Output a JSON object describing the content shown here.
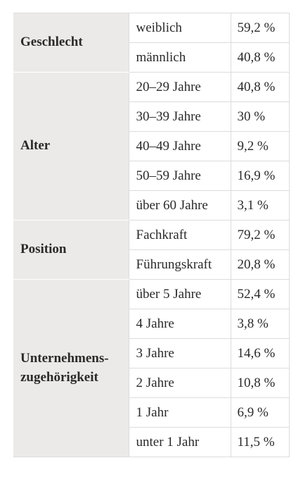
{
  "table": {
    "groups": [
      {
        "label": "Geschlecht",
        "rows": [
          {
            "sub": "weiblich",
            "value": "59,2 %"
          },
          {
            "sub": "männlich",
            "value": "40,8 %"
          }
        ]
      },
      {
        "label": "Alter",
        "rows": [
          {
            "sub": "20–29 Jahre",
            "value": "40,8 %"
          },
          {
            "sub": "30–39 Jahre",
            "value": "30 %"
          },
          {
            "sub": "40–49 Jahre",
            "value": "9,2 %"
          },
          {
            "sub": "50–59 Jahre",
            "value": "16,9 %"
          },
          {
            "sub": "über 60 Jahre",
            "value": "3,1 %"
          }
        ]
      },
      {
        "label": "Position",
        "rows": [
          {
            "sub": "Fachkraft",
            "value": "79,2 %"
          },
          {
            "sub": "Führungskraft",
            "value": "20,8 %"
          }
        ]
      },
      {
        "label_lines": [
          "Unternehmens-",
          "zugehörigkeit"
        ],
        "rows": [
          {
            "sub": "über 5 Jahre",
            "value": "52,4 %"
          },
          {
            "sub": "4 Jahre",
            "value": "3,8 %"
          },
          {
            "sub": "3 Jahre",
            "value": "14,6 %"
          },
          {
            "sub": "2 Jahre",
            "value": "10,8 %"
          },
          {
            "sub": "1 Jahr",
            "value": "6,9 %"
          },
          {
            "sub": "unter 1 Jahr",
            "value": "11,5 %"
          }
        ]
      }
    ]
  }
}
